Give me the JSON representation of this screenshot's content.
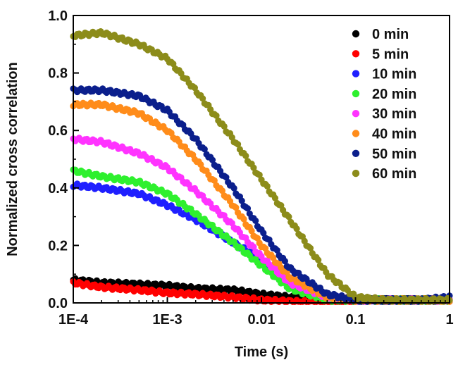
{
  "chart_data": {
    "type": "scatter",
    "xlabel": "Time (s)",
    "ylabel": "Normalized cross correlation",
    "x_scale": "log",
    "xlim": [
      0.0001,
      1
    ],
    "ylim": [
      0.0,
      1.0
    ],
    "x_ticks": [
      {
        "value": 0.0001,
        "label": "1E-4"
      },
      {
        "value": 0.001,
        "label": "1E-3"
      },
      {
        "value": 0.01,
        "label": "0.01"
      },
      {
        "value": 0.1,
        "label": "0.1"
      },
      {
        "value": 1,
        "label": "1"
      }
    ],
    "y_ticks": [
      {
        "value": 0.0,
        "label": "0.0"
      },
      {
        "value": 0.2,
        "label": "0.2"
      },
      {
        "value": 0.4,
        "label": "0.4"
      },
      {
        "value": 0.6,
        "label": "0.6"
      },
      {
        "value": 0.8,
        "label": "0.8"
      },
      {
        "value": 1.0,
        "label": "1.0"
      }
    ],
    "grid": false,
    "legend_position": "top-right",
    "series": [
      {
        "name": "0 min",
        "color": "#000000",
        "x": [
          0.0001,
          0.0002,
          0.0005,
          0.001,
          0.002,
          0.005,
          0.01,
          0.02,
          0.05,
          0.1,
          0.2,
          0.5,
          1
        ],
        "y": [
          0.08,
          0.07,
          0.065,
          0.06,
          0.05,
          0.045,
          0.03,
          0.02,
          0.01,
          0.01,
          0.01,
          0.01,
          0.01
        ]
      },
      {
        "name": "5 min",
        "color": "#ff0000",
        "x": [
          0.0001,
          0.0002,
          0.0005,
          0.001,
          0.002,
          0.005,
          0.01,
          0.02,
          0.05,
          0.1
        ],
        "y": [
          0.07,
          0.055,
          0.045,
          0.035,
          0.03,
          0.02,
          0.01,
          0.005,
          0.0,
          0.0
        ]
      },
      {
        "name": "10 min",
        "color": "#1f1fff",
        "x": [
          0.0001,
          0.0002,
          0.0005,
          0.001,
          0.002,
          0.005,
          0.01,
          0.02,
          0.05,
          0.1,
          0.2,
          0.5,
          1
        ],
        "y": [
          0.41,
          0.4,
          0.38,
          0.34,
          0.29,
          0.21,
          0.15,
          0.08,
          0.02,
          0.01,
          0.01,
          0.01,
          0.01
        ]
      },
      {
        "name": "20 min",
        "color": "#2ef02e",
        "x": [
          0.0001,
          0.0002,
          0.0005,
          0.001,
          0.002,
          0.005,
          0.01,
          0.02,
          0.05,
          0.1,
          0.2,
          0.5,
          1
        ],
        "y": [
          0.46,
          0.44,
          0.42,
          0.38,
          0.31,
          0.21,
          0.13,
          0.05,
          0.01,
          0.01,
          0.01,
          0.01,
          0.01
        ]
      },
      {
        "name": "30 min",
        "color": "#ff33ff",
        "x": [
          0.0001,
          0.0002,
          0.0005,
          0.001,
          0.002,
          0.005,
          0.01,
          0.02,
          0.05,
          0.1,
          0.2,
          0.5,
          1
        ],
        "y": [
          0.57,
          0.56,
          0.52,
          0.47,
          0.39,
          0.27,
          0.16,
          0.07,
          0.02,
          0.01,
          0.01,
          0.01,
          0.01
        ]
      },
      {
        "name": "40 min",
        "color": "#ff8c1a",
        "x": [
          0.0001,
          0.0002,
          0.0005,
          0.001,
          0.002,
          0.005,
          0.01,
          0.02,
          0.05,
          0.1,
          0.2,
          0.5,
          1
        ],
        "y": [
          0.69,
          0.69,
          0.66,
          0.6,
          0.5,
          0.34,
          0.2,
          0.09,
          0.02,
          0.01,
          0.01,
          0.01,
          0.01
        ]
      },
      {
        "name": "50 min",
        "color": "#0b1f8c",
        "x": [
          0.0001,
          0.0002,
          0.0005,
          0.001,
          0.002,
          0.005,
          0.01,
          0.02,
          0.05,
          0.1,
          0.2,
          0.5,
          1
        ],
        "y": [
          0.74,
          0.74,
          0.72,
          0.67,
          0.57,
          0.4,
          0.25,
          0.12,
          0.03,
          0.01,
          0.01,
          0.01,
          0.02
        ]
      },
      {
        "name": "60 min",
        "color": "#8c8c1a",
        "x": [
          0.0001,
          0.0002,
          0.0005,
          0.001,
          0.002,
          0.005,
          0.01,
          0.02,
          0.05,
          0.1,
          0.2,
          0.5,
          1
        ],
        "y": [
          0.93,
          0.94,
          0.9,
          0.85,
          0.74,
          0.57,
          0.43,
          0.29,
          0.1,
          0.02,
          0.01,
          0.01,
          0.01
        ]
      }
    ]
  }
}
